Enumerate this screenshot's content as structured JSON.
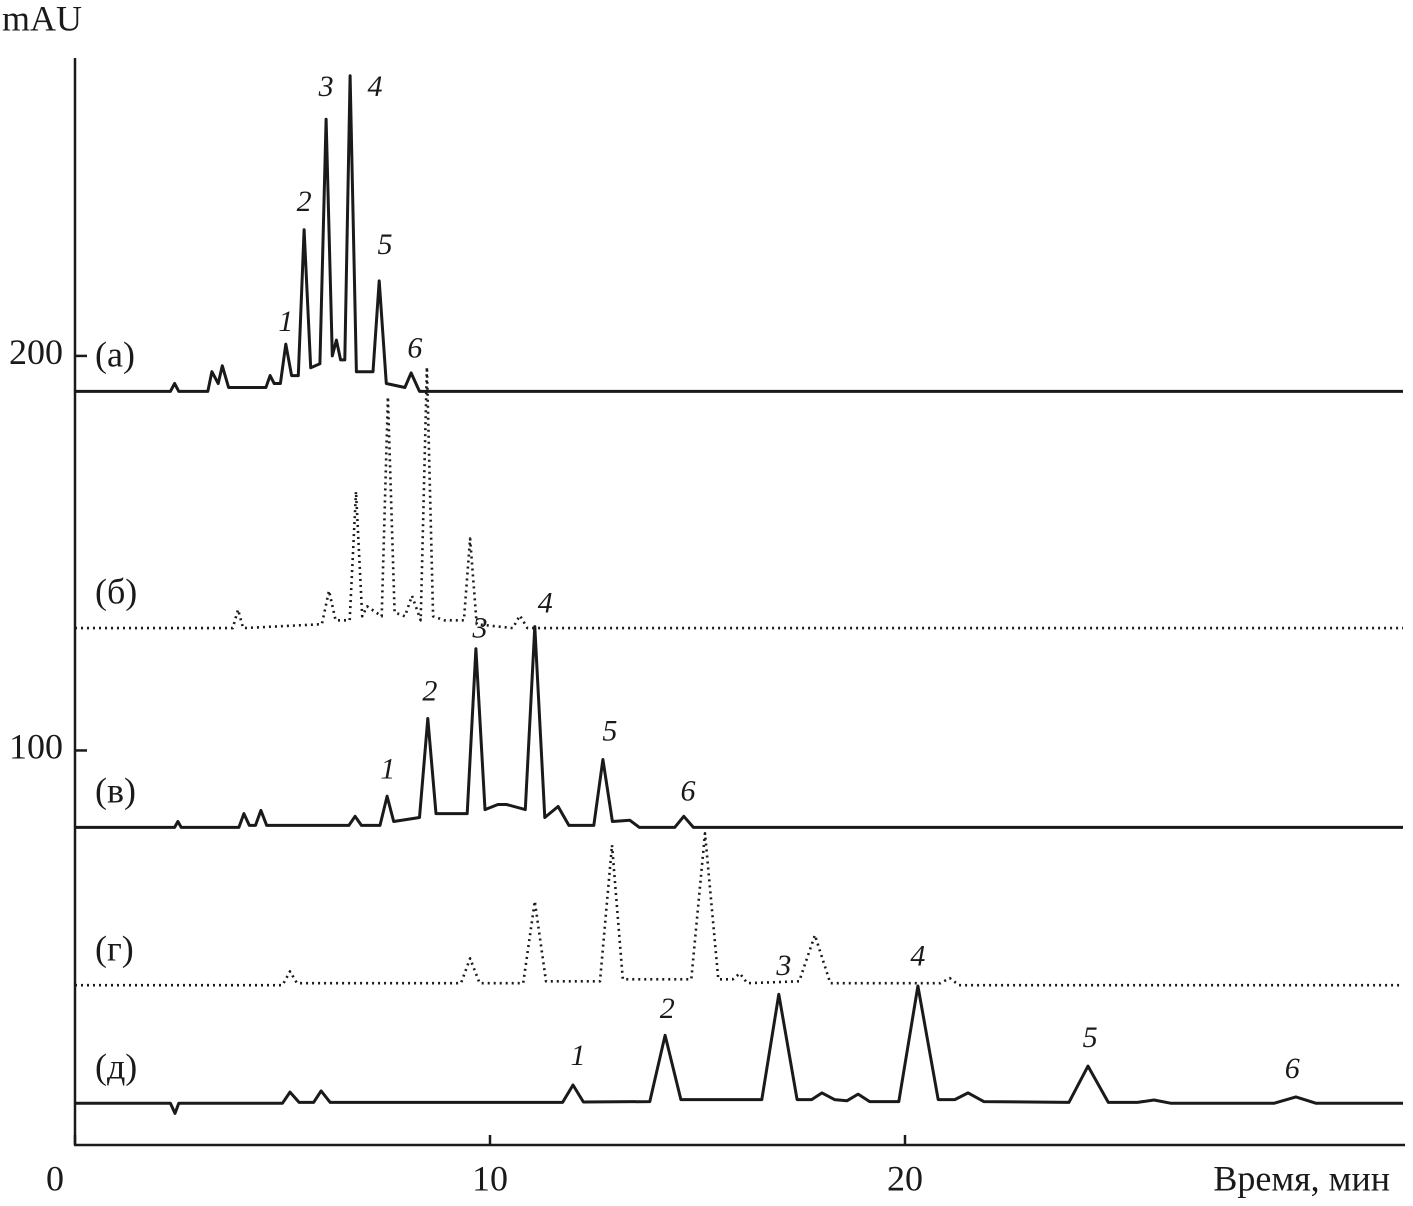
{
  "chart_data": {
    "type": "line",
    "x_label": "Время, мин",
    "y_label": "mAU",
    "xlim": [
      0,
      32
    ],
    "ylim": [
      0,
      275
    ],
    "xticks": [
      0,
      10,
      20
    ],
    "yticks": [
      100,
      200
    ],
    "series": [
      {
        "name": "(а)",
        "color": "#1a1a1a",
        "style": "solid",
        "x": [
          0,
          2.3,
          2.4,
          2.5,
          3.2,
          3.3,
          3.45,
          3.55,
          3.7,
          4.6,
          4.7,
          4.8,
          4.95,
          5.08,
          5.22,
          5.38,
          5.52,
          5.68,
          5.9,
          6.05,
          6.2,
          6.3,
          6.4,
          6.5,
          6.63,
          6.78,
          7.18,
          7.33,
          7.5,
          7.95,
          8.1,
          8.3,
          32
        ],
        "values": [
          191,
          191,
          193,
          191,
          191,
          196,
          193,
          197.5,
          192,
          192,
          195,
          193,
          193,
          203,
          195,
          195,
          232,
          197,
          198,
          260,
          200,
          204,
          199,
          199,
          271,
          196,
          196,
          219,
          193,
          192,
          195.7,
          191,
          191
        ]
      },
      {
        "name": "(б)",
        "color": "#1a1a1a",
        "style": "dotted",
        "x": [
          0,
          3.8,
          3.93,
          4.05,
          5.95,
          6.12,
          6.28,
          6.62,
          6.77,
          6.92,
          7.04,
          7.39,
          7.54,
          7.7,
          7.95,
          8.12,
          8.33,
          8.48,
          8.63,
          8.9,
          9.37,
          9.52,
          9.68,
          10.55,
          10.72,
          10.9,
          32
        ],
        "values": [
          131,
          131,
          135.7,
          131,
          132,
          140.5,
          133,
          133,
          165.6,
          134,
          136.5,
          134,
          189.6,
          135,
          134,
          139.2,
          133,
          197.2,
          134,
          133,
          133,
          153.7,
          132,
          131,
          134.2,
          131,
          131
        ]
      },
      {
        "name": "(в)",
        "color": "#1a1a1a",
        "style": "solid",
        "x": [
          0,
          2.4,
          2.48,
          2.56,
          3.95,
          4.07,
          4.2,
          4.35,
          4.48,
          4.62,
          6.6,
          6.75,
          6.9,
          7.35,
          7.52,
          7.68,
          8.3,
          8.5,
          8.7,
          9.45,
          9.66,
          9.88,
          10.19,
          10.4,
          10.85,
          11.08,
          11.32,
          11.64,
          11.9,
          12.5,
          12.72,
          12.95,
          13.37,
          13.6,
          14.45,
          14.67,
          14.9,
          32
        ],
        "values": [
          80.5,
          80.5,
          82,
          80.5,
          80.5,
          84,
          81,
          81,
          84.8,
          81,
          81,
          83.3,
          81,
          81,
          88.4,
          82,
          83,
          108.1,
          84,
          84,
          125.8,
          85,
          86.3,
          86.3,
          85,
          131.4,
          83,
          85.8,
          81,
          81,
          97.7,
          82,
          82.3,
          80.5,
          80.5,
          83.3,
          80.5,
          80.5
        ]
      },
      {
        "name": "(г)",
        "color": "#1a1a1a",
        "style": "dotted",
        "x": [
          0,
          5.0,
          5.18,
          5.35,
          9.3,
          9.52,
          9.75,
          10.8,
          11.08,
          11.35,
          12.65,
          12.94,
          13.2,
          14.85,
          15.18,
          15.5,
          15.85,
          16.02,
          16.2,
          17.45,
          17.83,
          18.2,
          20.85,
          21.08,
          21.3,
          32
        ],
        "values": [
          40.5,
          40.5,
          44,
          41,
          41,
          47.3,
          41,
          41,
          61.8,
          41.5,
          41.5,
          76,
          42,
          42,
          79,
          42,
          42,
          43.5,
          41,
          41.5,
          53.2,
          41,
          41,
          42.3,
          40.5,
          40.5
        ]
      },
      {
        "name": "(д)",
        "color": "#1a1a1a",
        "style": "solid",
        "x": [
          0,
          2.3,
          2.41,
          2.5,
          5.0,
          5.18,
          5.4,
          5.75,
          5.93,
          6.15,
          11.75,
          12.0,
          12.25,
          13.85,
          14.22,
          14.6,
          16.55,
          16.96,
          17.4,
          17.75,
          18.0,
          18.3,
          18.6,
          18.87,
          19.15,
          19.85,
          20.31,
          20.8,
          21.2,
          21.52,
          21.9,
          23.95,
          24.41,
          24.9,
          25.6,
          26.0,
          26.4,
          28.9,
          29.42,
          29.9,
          32
        ],
        "values": [
          10.6,
          10.6,
          8,
          10.6,
          10.6,
          13.4,
          10.8,
          10.8,
          13.7,
          10.8,
          10.8,
          15.2,
          10.9,
          11,
          27.8,
          11.5,
          11.5,
          38.2,
          11.5,
          11.5,
          13.2,
          11.5,
          11.2,
          12.9,
          11,
          11,
          40.3,
          11.5,
          11.5,
          13.2,
          11,
          10.8,
          20,
          10.8,
          10.8,
          11.4,
          10.6,
          10.6,
          12.2,
          10.6,
          10.6
        ]
      }
    ],
    "annotations": [
      {
        "text": "1",
        "x": 5.08,
        "y": 208
      },
      {
        "text": "2",
        "x": 5.52,
        "y": 238.5
      },
      {
        "text": "3",
        "x": 6.05,
        "y": 267.6
      },
      {
        "text": "4",
        "x": 7.23,
        "y": 267.6
      },
      {
        "text": "5",
        "x": 7.47,
        "y": 227.6
      },
      {
        "text": "6",
        "x": 8.19,
        "y": 201.3
      },
      {
        "text": "1",
        "x": 7.54,
        "y": 94.7
      },
      {
        "text": "2",
        "x": 8.55,
        "y": 114.4
      },
      {
        "text": "3",
        "x": 9.76,
        "y": 130.4
      },
      {
        "text": "4",
        "x": 11.33,
        "y": 136.7
      },
      {
        "text": "5",
        "x": 12.89,
        "y": 104.3
      },
      {
        "text": "6",
        "x": 14.77,
        "y": 89.1
      },
      {
        "text": "1",
        "x": 12.12,
        "y": 22
      },
      {
        "text": "2",
        "x": 14.27,
        "y": 33.9
      },
      {
        "text": "3",
        "x": 17.08,
        "y": 44.8
      },
      {
        "text": "4",
        "x": 20.31,
        "y": 47.3
      },
      {
        "text": "5",
        "x": 24.46,
        "y": 26.6
      },
      {
        "text": "6",
        "x": 29.33,
        "y": 18.7
      }
    ]
  }
}
